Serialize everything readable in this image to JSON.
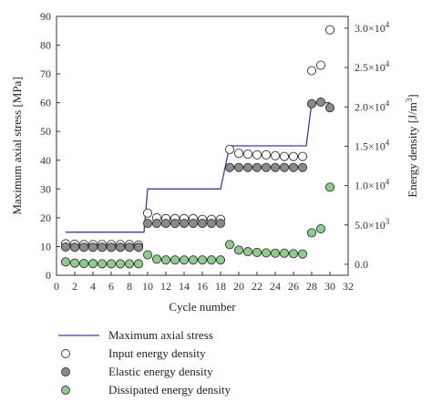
{
  "chart_data": {
    "type": "line",
    "xlabel": "Cycle number",
    "ylabel": "Maximum axial stress [MPa]",
    "y2label": "Energy density [J/m³]",
    "xlim": [
      0,
      32
    ],
    "xticks": [
      "0",
      "2",
      "4",
      "6",
      "8",
      "10",
      "12",
      "14",
      "16",
      "18",
      "20",
      "22",
      "24",
      "26",
      "28",
      "30",
      "32"
    ],
    "ylim": [
      0,
      90
    ],
    "yticks": [
      "0",
      "10",
      "20",
      "30",
      "40",
      "50",
      "60",
      "70",
      "80",
      "90"
    ],
    "y2lim": [
      -1400,
      31500
    ],
    "y2ticks": [
      {
        "mantissa": "0.0",
        "exp": ""
      },
      {
        "mantissa": "5.0",
        "exp": "3"
      },
      {
        "mantissa": "1.0",
        "exp": "4"
      },
      {
        "mantissa": "1.5",
        "exp": "4"
      },
      {
        "mantissa": "2.0",
        "exp": "4"
      },
      {
        "mantissa": "2.5",
        "exp": "4"
      },
      {
        "mantissa": "3.0",
        "exp": "4"
      }
    ],
    "y2tick_values": [
      0,
      5000,
      10000,
      15000,
      20000,
      25000,
      30000
    ],
    "grid": false,
    "legend_position": "bottom",
    "series": [
      {
        "name": "Maximum axial stress",
        "kind": "step-line",
        "axis": "left",
        "color": "#3d3d9e",
        "x": [
          1,
          9.6,
          10,
          18,
          19,
          27.4,
          28,
          30
        ],
        "y": [
          15,
          15,
          30,
          30,
          45,
          45,
          60,
          60
        ]
      },
      {
        "name": "Input energy density",
        "kind": "marker",
        "axis": "right",
        "color": "#ffffff",
        "x": [
          1,
          2,
          3,
          4,
          5,
          6,
          7,
          8,
          9,
          10,
          11,
          12,
          13,
          14,
          15,
          16,
          17,
          18,
          19,
          20,
          21,
          22,
          23,
          24,
          25,
          26,
          27,
          28,
          29,
          30
        ],
        "y": [
          2600,
          2550,
          2500,
          2500,
          2500,
          2500,
          2500,
          2500,
          2450,
          6500,
          5900,
          5800,
          5800,
          5800,
          5800,
          5700,
          5700,
          5700,
          14600,
          14100,
          14000,
          13900,
          13900,
          13800,
          13700,
          13700,
          13700,
          24600,
          25300,
          29800
        ]
      },
      {
        "name": "Elastic energy density",
        "kind": "marker",
        "axis": "right",
        "color": "#8a8a8a",
        "x": [
          1,
          2,
          3,
          4,
          5,
          6,
          7,
          8,
          9,
          10,
          11,
          12,
          13,
          14,
          15,
          16,
          17,
          18,
          19,
          20,
          21,
          22,
          23,
          24,
          25,
          26,
          27,
          28,
          29,
          30
        ],
        "y": [
          2200,
          2150,
          2150,
          2150,
          2150,
          2150,
          2150,
          2150,
          2150,
          5200,
          5200,
          5200,
          5200,
          5200,
          5200,
          5200,
          5200,
          5200,
          12300,
          12300,
          12300,
          12300,
          12300,
          12300,
          12300,
          12300,
          12300,
          20400,
          20600,
          19900
        ]
      },
      {
        "name": "Dissipated energy density",
        "kind": "marker",
        "axis": "right",
        "color": "#8fca8f",
        "x": [
          1,
          2,
          3,
          4,
          5,
          6,
          7,
          8,
          9,
          10,
          11,
          12,
          13,
          14,
          15,
          16,
          17,
          18,
          19,
          20,
          21,
          22,
          23,
          24,
          25,
          26,
          27,
          28,
          29,
          30
        ],
        "y": [
          300,
          150,
          100,
          80,
          60,
          60,
          60,
          60,
          50,
          1200,
          650,
          550,
          550,
          550,
          550,
          550,
          550,
          550,
          2500,
          1800,
          1600,
          1500,
          1450,
          1400,
          1400,
          1350,
          1300,
          4000,
          4500,
          9800
        ]
      }
    ]
  }
}
